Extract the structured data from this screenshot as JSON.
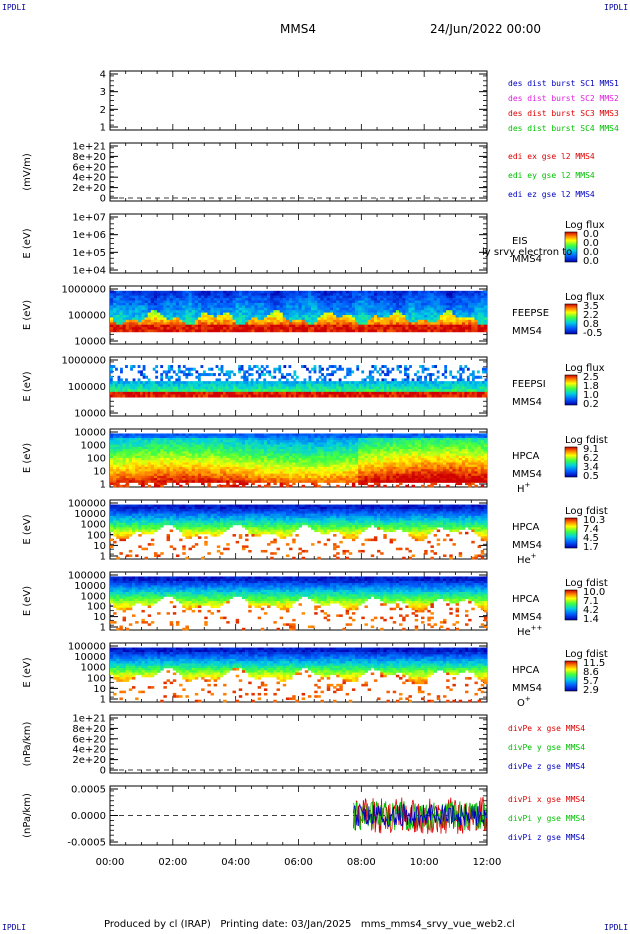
{
  "corner_marks": [
    "IPDLI",
    "IPDLI",
    "IPDLI",
    "IPDLI"
  ],
  "header": {
    "spacecraft": "MMS4",
    "date": "24/Jun/2022 00:00"
  },
  "footer": "Produced by cl (IRAP)   Printing date: 03/Jan/2025   mms_mms4_srvy_vue_web2.cl",
  "chart_data": [
    {
      "id": "des_dist",
      "type": "line",
      "ytick_labels": [
        "1",
        "2",
        "3",
        "4"
      ],
      "legend": [
        {
          "text": "des dist burst SC1 MMS1",
          "color": "#0000c0"
        },
        {
          "text": "des dist burst SC2 MMS2",
          "color": "#e020e0"
        },
        {
          "text": "des dist burst SC3 MMS3",
          "color": "#e00000"
        },
        {
          "text": "des dist burst SC4 MMS4",
          "color": "#00c000"
        }
      ]
    },
    {
      "id": "edi",
      "type": "line",
      "ylabel": "(mV/m)",
      "ytick_labels": [
        "0",
        "2e+20",
        "4e+20",
        "6e+20",
        "8e+20",
        "1e+21"
      ],
      "legend": [
        {
          "text": "edi ex gse l2 MMS4",
          "color": "#e00000"
        },
        {
          "text": "edi ey gse l2 MMS4",
          "color": "#00c000"
        },
        {
          "text": "edi ez gse l2 MMS4",
          "color": "#0000c0"
        }
      ]
    },
    {
      "id": "eis",
      "type": "heatmap",
      "ylabel": "E (eV)",
      "ytick_labels": [
        "1e+04",
        "1e+05",
        "1e+06",
        "1e+07"
      ],
      "labels": [
        "EIS",
        "MMS4"
      ],
      "overlay_text": "ly srvy electron to",
      "colorbar": {
        "title": "Log flux",
        "values": [
          "0.0",
          "0.0",
          "0.0",
          "0.0"
        ]
      }
    },
    {
      "id": "feeps_e",
      "type": "heatmap",
      "ylabel": "E (eV)",
      "ytick_labels": [
        "10000",
        "100000",
        "1000000"
      ],
      "labels": [
        "FEEPSE",
        "MMS4"
      ],
      "colorbar": {
        "title": "Log flux",
        "values": [
          "3.5",
          "2.2",
          "0.8",
          "-0.5"
        ]
      }
    },
    {
      "id": "feeps_i",
      "type": "heatmap",
      "ylabel": "E (eV)",
      "ytick_labels": [
        "10000",
        "100000",
        "1000000"
      ],
      "labels": [
        "FEEPSI",
        "MMS4"
      ],
      "colorbar": {
        "title": "Log flux",
        "values": [
          "2.5",
          "1.8",
          "1.0",
          "0.2"
        ]
      }
    },
    {
      "id": "hpca_h",
      "type": "heatmap",
      "ylabel": "E (eV)",
      "ytick_labels": [
        "1",
        "10",
        "100",
        "1000",
        "10000"
      ],
      "labels": [
        "HPCA",
        "MMS4"
      ],
      "species": "H",
      "charge": "+",
      "colorbar": {
        "title": "Log fdist",
        "values": [
          "9.1",
          "6.2",
          "3.4",
          "0.5"
        ]
      }
    },
    {
      "id": "hpca_he1",
      "type": "heatmap",
      "ylabel": "E (eV)",
      "ytick_labels": [
        "1",
        "10",
        "100",
        "1000",
        "10000",
        "100000"
      ],
      "labels": [
        "HPCA",
        "MMS4"
      ],
      "species": "He",
      "charge": "+",
      "colorbar": {
        "title": "Log fdist",
        "values": [
          "10.3",
          "7.4",
          "4.5",
          "1.7"
        ]
      }
    },
    {
      "id": "hpca_he2",
      "type": "heatmap",
      "ylabel": "E (eV)",
      "ytick_labels": [
        "1",
        "10",
        "100",
        "1000",
        "10000",
        "100000"
      ],
      "labels": [
        "HPCA",
        "MMS4"
      ],
      "species": "He",
      "charge": "++",
      "colorbar": {
        "title": "Log fdist",
        "values": [
          "10.0",
          "7.1",
          "4.2",
          "1.4"
        ]
      }
    },
    {
      "id": "hpca_o",
      "type": "heatmap",
      "ylabel": "E (eV)",
      "ytick_labels": [
        "1",
        "10",
        "100",
        "1000",
        "10000",
        "100000"
      ],
      "labels": [
        "HPCA",
        "MMS4"
      ],
      "species": "O",
      "charge": "+",
      "colorbar": {
        "title": "Log fdist",
        "values": [
          "11.5",
          "8.6",
          "5.7",
          "2.9"
        ]
      }
    },
    {
      "id": "divpe",
      "type": "line",
      "ylabel": "(nPa/km)",
      "ytick_labels": [
        "0",
        "2e+20",
        "4e+20",
        "6e+20",
        "8e+20",
        "1e+21"
      ],
      "legend": [
        {
          "text": "divPe x gse MMS4",
          "color": "#e00000"
        },
        {
          "text": "divPe y gse MMS4",
          "color": "#00c000"
        },
        {
          "text": "divPe z gse MMS4",
          "color": "#0000c0"
        }
      ]
    },
    {
      "id": "divpi",
      "type": "line",
      "ylabel": "(nPa/km)",
      "ytick_labels": [
        "-0.0005",
        "0.0000",
        "0.0005"
      ],
      "yrange": [
        -0.0008,
        0.0008
      ],
      "data_start_hour": 7.75,
      "series": [
        {
          "name": "divPi x gse MMS4",
          "color": "#e00000",
          "amplitude": 0.0005
        },
        {
          "name": "divPi y gse MMS4",
          "color": "#00c000",
          "amplitude": 0.0004
        },
        {
          "name": "divPi z gse MMS4",
          "color": "#0000c0",
          "amplitude": 0.0003
        }
      ]
    }
  ],
  "xaxis": {
    "tick_labels": [
      "00:00",
      "02:00",
      "04:00",
      "06:00",
      "08:00",
      "10:00",
      "12:00"
    ],
    "range_hours": [
      0,
      12
    ]
  }
}
